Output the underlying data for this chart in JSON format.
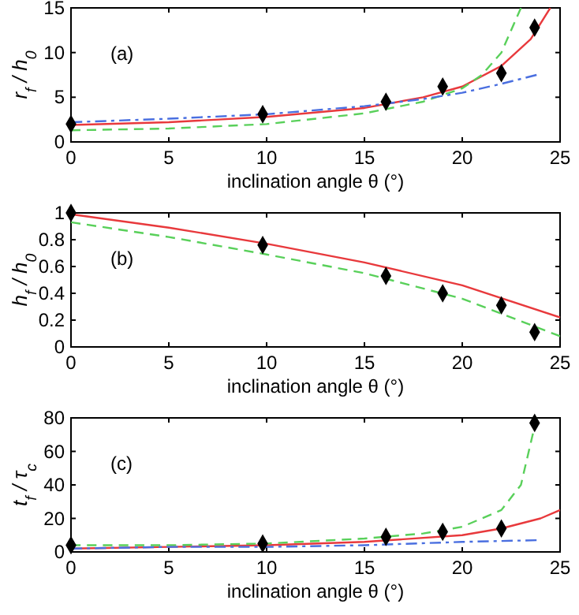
{
  "chart_data": [
    {
      "type": "line",
      "xlabel": "inclination angle θ (°)",
      "ylabel": "r$_{f}$ / h$_{0}$",
      "xlim": [
        0,
        25
      ],
      "ylim": [
        0,
        15
      ],
      "xticks": [
        0,
        5,
        10,
        15,
        20,
        25
      ],
      "yticks": [
        0,
        5,
        10,
        15
      ],
      "annotations": [
        "(a)"
      ],
      "series": [
        {
          "color": "#e8393c",
          "line_style": "solid",
          "x": [
            0,
            5,
            10,
            15,
            18,
            20,
            22,
            23.5,
            24.5
          ],
          "values": [
            1.9,
            2.2,
            2.8,
            3.8,
            5,
            6.2,
            8.5,
            11.5,
            15
          ]
        },
        {
          "color": "#59d05a",
          "line_style": "dashed",
          "x": [
            0,
            5,
            10,
            15,
            18,
            20,
            21,
            22,
            23
          ],
          "values": [
            1.3,
            1.5,
            2,
            3.2,
            4.5,
            6,
            7.5,
            10,
            15
          ]
        },
        {
          "color": "#4a6fe0",
          "line_style": "dashdot",
          "x": [
            0,
            5,
            10,
            15,
            18,
            20,
            22,
            23.8
          ],
          "values": [
            2.2,
            2.6,
            3.1,
            4,
            4.8,
            5.5,
            6.5,
            7.5
          ]
        },
        {
          "type": "scatter",
          "color": "#000000",
          "marker": "diamond",
          "x": [
            0,
            9.8,
            16.1,
            19,
            22,
            23.7
          ],
          "values": [
            2,
            3.1,
            4.5,
            6.2,
            7.7,
            12.8
          ]
        }
      ]
    },
    {
      "type": "line",
      "xlabel": "inclination angle θ  (°)",
      "ylabel": "h$_{f}$ / h$_{0}$",
      "xlim": [
        0,
        25
      ],
      "ylim": [
        0,
        1
      ],
      "xticks": [
        0,
        5,
        10,
        15,
        20,
        25
      ],
      "yticks": [
        0,
        0.2,
        0.4,
        0.6,
        0.8,
        1
      ],
      "annotations": [
        "(b)"
      ],
      "series": [
        {
          "color": "#e8393c",
          "line_style": "solid",
          "x": [
            0,
            5,
            10,
            15,
            20,
            25
          ],
          "values": [
            0.99,
            0.89,
            0.77,
            0.63,
            0.46,
            0.22
          ]
        },
        {
          "color": "#59d05a",
          "line_style": "dashed",
          "x": [
            0,
            5,
            10,
            15,
            20,
            25
          ],
          "values": [
            0.93,
            0.82,
            0.69,
            0.55,
            0.36,
            0.08
          ]
        },
        {
          "type": "scatter",
          "color": "#000000",
          "marker": "diamond",
          "x": [
            0,
            9.8,
            16.1,
            19,
            22,
            23.7
          ],
          "values": [
            1,
            0.76,
            0.53,
            0.4,
            0.31,
            0.11
          ]
        }
      ]
    },
    {
      "type": "line",
      "xlabel": "inclination angle θ (°)",
      "ylabel": "t$_{f}$ / τ$_{c}$",
      "xlim": [
        0,
        25
      ],
      "ylim": [
        0,
        80
      ],
      "xticks": [
        0,
        5,
        10,
        15,
        20,
        25
      ],
      "yticks": [
        0,
        20,
        40,
        60,
        80
      ],
      "annotations": [
        "(c)"
      ],
      "series": [
        {
          "color": "#e8393c",
          "line_style": "solid",
          "x": [
            0,
            5,
            10,
            15,
            20,
            22,
            24,
            25
          ],
          "values": [
            2,
            3,
            4,
            6,
            10,
            14,
            20,
            25
          ]
        },
        {
          "color": "#59d05a",
          "line_style": "dashed",
          "x": [
            0,
            5,
            10,
            15,
            18,
            20,
            22,
            23,
            23.7,
            23.8
          ],
          "values": [
            4,
            4,
            5,
            8,
            11,
            15,
            25,
            40,
            75,
            80
          ]
        },
        {
          "color": "#4a6fe0",
          "line_style": "dashdot",
          "x": [
            0,
            5,
            10,
            15,
            20,
            23.8
          ],
          "values": [
            2,
            3,
            3,
            4,
            6,
            7
          ]
        },
        {
          "type": "scatter",
          "color": "#000000",
          "marker": "diamond",
          "x": [
            0,
            9.8,
            16.1,
            19,
            22,
            23.7
          ],
          "values": [
            4,
            5,
            9,
            12,
            14,
            77
          ]
        }
      ]
    }
  ]
}
